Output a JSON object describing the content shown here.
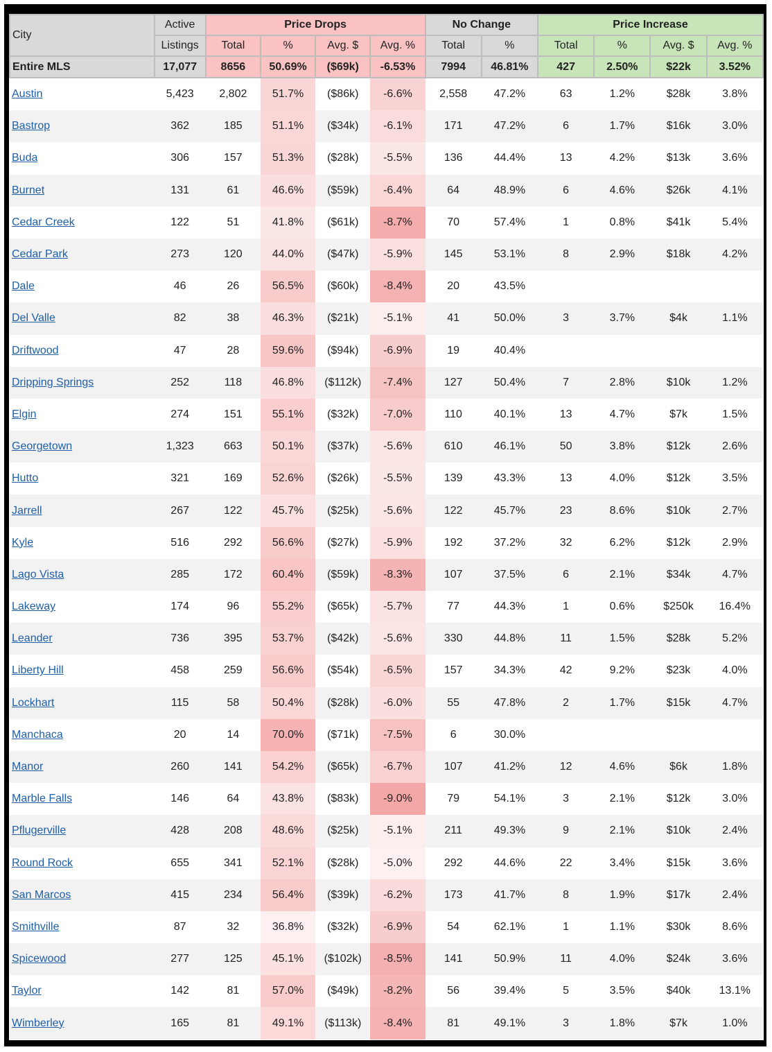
{
  "header": {
    "city": "City",
    "active_line1": "Active",
    "active_line2": "Listings",
    "price_drops": "Price Drops",
    "no_change": "No Change",
    "price_increase": "Price Increase",
    "sub": {
      "drop_total": "Total",
      "drop_pct": "%",
      "drop_avg_dollar": "Avg. $",
      "drop_avg_pct": "Avg. %",
      "nc_total": "Total",
      "nc_pct": "%",
      "inc_total": "Total",
      "inc_pct": "%",
      "inc_avg_dollar": "Avg. $",
      "inc_avg_pct": "Avg. %"
    }
  },
  "summary": {
    "city": "Entire MLS",
    "active": "17,077",
    "drop_total": "8656",
    "drop_pct": "50.69%",
    "drop_avg_dollar": "($69k)",
    "drop_avg_pct": "-6.53%",
    "nc_total": "7994",
    "nc_pct": "46.81%",
    "inc_total": "427",
    "inc_pct": "2.50%",
    "inc_avg_dollar": "$22k",
    "inc_avg_pct": "3.52%"
  },
  "heat_colors": {
    "drop_pct": {
      "low": "#fdf0f0",
      "high": "#f7b3b3"
    },
    "drop_avg_pct": {
      "low": "#fdf0f0",
      "high": "#f3a7a7"
    }
  },
  "rows": [
    {
      "city": "Austin",
      "active": "5,423",
      "drop_total": "2,802",
      "drop_pct": "51.7%",
      "drop_avg_dollar": "($86k)",
      "drop_avg_pct": "-6.6%",
      "nc_total": "2,558",
      "nc_pct": "47.2%",
      "inc_total": "63",
      "inc_pct": "1.2%",
      "inc_avg_dollar": "$28k",
      "inc_avg_pct": "3.8%"
    },
    {
      "city": "Bastrop",
      "active": "362",
      "drop_total": "185",
      "drop_pct": "51.1%",
      "drop_avg_dollar": "($34k)",
      "drop_avg_pct": "-6.1%",
      "nc_total": "171",
      "nc_pct": "47.2%",
      "inc_total": "6",
      "inc_pct": "1.7%",
      "inc_avg_dollar": "$16k",
      "inc_avg_pct": "3.0%"
    },
    {
      "city": "Buda",
      "active": "306",
      "drop_total": "157",
      "drop_pct": "51.3%",
      "drop_avg_dollar": "($28k)",
      "drop_avg_pct": "-5.5%",
      "nc_total": "136",
      "nc_pct": "44.4%",
      "inc_total": "13",
      "inc_pct": "4.2%",
      "inc_avg_dollar": "$13k",
      "inc_avg_pct": "3.6%"
    },
    {
      "city": "Burnet",
      "active": "131",
      "drop_total": "61",
      "drop_pct": "46.6%",
      "drop_avg_dollar": "($59k)",
      "drop_avg_pct": "-6.4%",
      "nc_total": "64",
      "nc_pct": "48.9%",
      "inc_total": "6",
      "inc_pct": "4.6%",
      "inc_avg_dollar": "$26k",
      "inc_avg_pct": "4.1%"
    },
    {
      "city": "Cedar Creek",
      "active": "122",
      "drop_total": "51",
      "drop_pct": "41.8%",
      "drop_avg_dollar": "($61k)",
      "drop_avg_pct": "-8.7%",
      "nc_total": "70",
      "nc_pct": "57.4%",
      "inc_total": "1",
      "inc_pct": "0.8%",
      "inc_avg_dollar": "$41k",
      "inc_avg_pct": "5.4%"
    },
    {
      "city": "Cedar Park",
      "active": "273",
      "drop_total": "120",
      "drop_pct": "44.0%",
      "drop_avg_dollar": "($47k)",
      "drop_avg_pct": "-5.9%",
      "nc_total": "145",
      "nc_pct": "53.1%",
      "inc_total": "8",
      "inc_pct": "2.9%",
      "inc_avg_dollar": "$18k",
      "inc_avg_pct": "4.2%"
    },
    {
      "city": "Dale",
      "active": "46",
      "drop_total": "26",
      "drop_pct": "56.5%",
      "drop_avg_dollar": "($60k)",
      "drop_avg_pct": "-8.4%",
      "nc_total": "20",
      "nc_pct": "43.5%",
      "inc_total": "",
      "inc_pct": "",
      "inc_avg_dollar": "",
      "inc_avg_pct": ""
    },
    {
      "city": "Del Valle",
      "active": "82",
      "drop_total": "38",
      "drop_pct": "46.3%",
      "drop_avg_dollar": "($21k)",
      "drop_avg_pct": "-5.1%",
      "nc_total": "41",
      "nc_pct": "50.0%",
      "inc_total": "3",
      "inc_pct": "3.7%",
      "inc_avg_dollar": "$4k",
      "inc_avg_pct": "1.1%"
    },
    {
      "city": "Driftwood",
      "active": "47",
      "drop_total": "28",
      "drop_pct": "59.6%",
      "drop_avg_dollar": "($94k)",
      "drop_avg_pct": "-6.9%",
      "nc_total": "19",
      "nc_pct": "40.4%",
      "inc_total": "",
      "inc_pct": "",
      "inc_avg_dollar": "",
      "inc_avg_pct": ""
    },
    {
      "city": "Dripping Springs",
      "active": "252",
      "drop_total": "118",
      "drop_pct": "46.8%",
      "drop_avg_dollar": "($112k)",
      "drop_avg_pct": "-7.4%",
      "nc_total": "127",
      "nc_pct": "50.4%",
      "inc_total": "7",
      "inc_pct": "2.8%",
      "inc_avg_dollar": "$10k",
      "inc_avg_pct": "1.2%"
    },
    {
      "city": "Elgin",
      "active": "274",
      "drop_total": "151",
      "drop_pct": "55.1%",
      "drop_avg_dollar": "($32k)",
      "drop_avg_pct": "-7.0%",
      "nc_total": "110",
      "nc_pct": "40.1%",
      "inc_total": "13",
      "inc_pct": "4.7%",
      "inc_avg_dollar": "$7k",
      "inc_avg_pct": "1.5%"
    },
    {
      "city": "Georgetown",
      "active": "1,323",
      "drop_total": "663",
      "drop_pct": "50.1%",
      "drop_avg_dollar": "($37k)",
      "drop_avg_pct": "-5.6%",
      "nc_total": "610",
      "nc_pct": "46.1%",
      "inc_total": "50",
      "inc_pct": "3.8%",
      "inc_avg_dollar": "$12k",
      "inc_avg_pct": "2.6%"
    },
    {
      "city": "Hutto",
      "active": "321",
      "drop_total": "169",
      "drop_pct": "52.6%",
      "drop_avg_dollar": "($26k)",
      "drop_avg_pct": "-5.5%",
      "nc_total": "139",
      "nc_pct": "43.3%",
      "inc_total": "13",
      "inc_pct": "4.0%",
      "inc_avg_dollar": "$12k",
      "inc_avg_pct": "3.5%"
    },
    {
      "city": "Jarrell",
      "active": "267",
      "drop_total": "122",
      "drop_pct": "45.7%",
      "drop_avg_dollar": "($25k)",
      "drop_avg_pct": "-5.6%",
      "nc_total": "122",
      "nc_pct": "45.7%",
      "inc_total": "23",
      "inc_pct": "8.6%",
      "inc_avg_dollar": "$10k",
      "inc_avg_pct": "2.7%"
    },
    {
      "city": "Kyle",
      "active": "516",
      "drop_total": "292",
      "drop_pct": "56.6%",
      "drop_avg_dollar": "($27k)",
      "drop_avg_pct": "-5.9%",
      "nc_total": "192",
      "nc_pct": "37.2%",
      "inc_total": "32",
      "inc_pct": "6.2%",
      "inc_avg_dollar": "$12k",
      "inc_avg_pct": "2.9%"
    },
    {
      "city": "Lago Vista",
      "active": "285",
      "drop_total": "172",
      "drop_pct": "60.4%",
      "drop_avg_dollar": "($59k)",
      "drop_avg_pct": "-8.3%",
      "nc_total": "107",
      "nc_pct": "37.5%",
      "inc_total": "6",
      "inc_pct": "2.1%",
      "inc_avg_dollar": "$34k",
      "inc_avg_pct": "4.7%"
    },
    {
      "city": "Lakeway",
      "active": "174",
      "drop_total": "96",
      "drop_pct": "55.2%",
      "drop_avg_dollar": "($65k)",
      "drop_avg_pct": "-5.7%",
      "nc_total": "77",
      "nc_pct": "44.3%",
      "inc_total": "1",
      "inc_pct": "0.6%",
      "inc_avg_dollar": "$250k",
      "inc_avg_pct": "16.4%"
    },
    {
      "city": "Leander",
      "active": "736",
      "drop_total": "395",
      "drop_pct": "53.7%",
      "drop_avg_dollar": "($42k)",
      "drop_avg_pct": "-5.6%",
      "nc_total": "330",
      "nc_pct": "44.8%",
      "inc_total": "11",
      "inc_pct": "1.5%",
      "inc_avg_dollar": "$28k",
      "inc_avg_pct": "5.2%"
    },
    {
      "city": "Liberty Hill",
      "active": "458",
      "drop_total": "259",
      "drop_pct": "56.6%",
      "drop_avg_dollar": "($54k)",
      "drop_avg_pct": "-6.5%",
      "nc_total": "157",
      "nc_pct": "34.3%",
      "inc_total": "42",
      "inc_pct": "9.2%",
      "inc_avg_dollar": "$23k",
      "inc_avg_pct": "4.0%"
    },
    {
      "city": "Lockhart",
      "active": "115",
      "drop_total": "58",
      "drop_pct": "50.4%",
      "drop_avg_dollar": "($28k)",
      "drop_avg_pct": "-6.0%",
      "nc_total": "55",
      "nc_pct": "47.8%",
      "inc_total": "2",
      "inc_pct": "1.7%",
      "inc_avg_dollar": "$15k",
      "inc_avg_pct": "4.7%"
    },
    {
      "city": "Manchaca",
      "active": "20",
      "drop_total": "14",
      "drop_pct": "70.0%",
      "drop_avg_dollar": "($71k)",
      "drop_avg_pct": "-7.5%",
      "nc_total": "6",
      "nc_pct": "30.0%",
      "inc_total": "",
      "inc_pct": "",
      "inc_avg_dollar": "",
      "inc_avg_pct": ""
    },
    {
      "city": "Manor",
      "active": "260",
      "drop_total": "141",
      "drop_pct": "54.2%",
      "drop_avg_dollar": "($65k)",
      "drop_avg_pct": "-6.7%",
      "nc_total": "107",
      "nc_pct": "41.2%",
      "inc_total": "12",
      "inc_pct": "4.6%",
      "inc_avg_dollar": "$6k",
      "inc_avg_pct": "1.8%"
    },
    {
      "city": "Marble Falls",
      "active": "146",
      "drop_total": "64",
      "drop_pct": "43.8%",
      "drop_avg_dollar": "($83k)",
      "drop_avg_pct": "-9.0%",
      "nc_total": "79",
      "nc_pct": "54.1%",
      "inc_total": "3",
      "inc_pct": "2.1%",
      "inc_avg_dollar": "$12k",
      "inc_avg_pct": "3.0%"
    },
    {
      "city": "Pflugerville",
      "active": "428",
      "drop_total": "208",
      "drop_pct": "48.6%",
      "drop_avg_dollar": "($25k)",
      "drop_avg_pct": "-5.1%",
      "nc_total": "211",
      "nc_pct": "49.3%",
      "inc_total": "9",
      "inc_pct": "2.1%",
      "inc_avg_dollar": "$10k",
      "inc_avg_pct": "2.4%"
    },
    {
      "city": "Round Rock",
      "active": "655",
      "drop_total": "341",
      "drop_pct": "52.1%",
      "drop_avg_dollar": "($28k)",
      "drop_avg_pct": "-5.0%",
      "nc_total": "292",
      "nc_pct": "44.6%",
      "inc_total": "22",
      "inc_pct": "3.4%",
      "inc_avg_dollar": "$15k",
      "inc_avg_pct": "3.6%"
    },
    {
      "city": "San Marcos",
      "active": "415",
      "drop_total": "234",
      "drop_pct": "56.4%",
      "drop_avg_dollar": "($39k)",
      "drop_avg_pct": "-6.2%",
      "nc_total": "173",
      "nc_pct": "41.7%",
      "inc_total": "8",
      "inc_pct": "1.9%",
      "inc_avg_dollar": "$17k",
      "inc_avg_pct": "2.4%"
    },
    {
      "city": "Smithville",
      "active": "87",
      "drop_total": "32",
      "drop_pct": "36.8%",
      "drop_avg_dollar": "($32k)",
      "drop_avg_pct": "-6.9%",
      "nc_total": "54",
      "nc_pct": "62.1%",
      "inc_total": "1",
      "inc_pct": "1.1%",
      "inc_avg_dollar": "$30k",
      "inc_avg_pct": "8.6%"
    },
    {
      "city": "Spicewood",
      "active": "277",
      "drop_total": "125",
      "drop_pct": "45.1%",
      "drop_avg_dollar": "($102k)",
      "drop_avg_pct": "-8.5%",
      "nc_total": "141",
      "nc_pct": "50.9%",
      "inc_total": "11",
      "inc_pct": "4.0%",
      "inc_avg_dollar": "$24k",
      "inc_avg_pct": "3.6%"
    },
    {
      "city": "Taylor",
      "active": "142",
      "drop_total": "81",
      "drop_pct": "57.0%",
      "drop_avg_dollar": "($49k)",
      "drop_avg_pct": "-8.2%",
      "nc_total": "56",
      "nc_pct": "39.4%",
      "inc_total": "5",
      "inc_pct": "3.5%",
      "inc_avg_dollar": "$40k",
      "inc_avg_pct": "13.1%"
    },
    {
      "city": "Wimberley",
      "active": "165",
      "drop_total": "81",
      "drop_pct": "49.1%",
      "drop_avg_dollar": "($113k)",
      "drop_avg_pct": "-8.4%",
      "nc_total": "81",
      "nc_pct": "49.1%",
      "inc_total": "3",
      "inc_pct": "1.8%",
      "inc_avg_dollar": "$7k",
      "inc_avg_pct": "1.0%"
    }
  ]
}
